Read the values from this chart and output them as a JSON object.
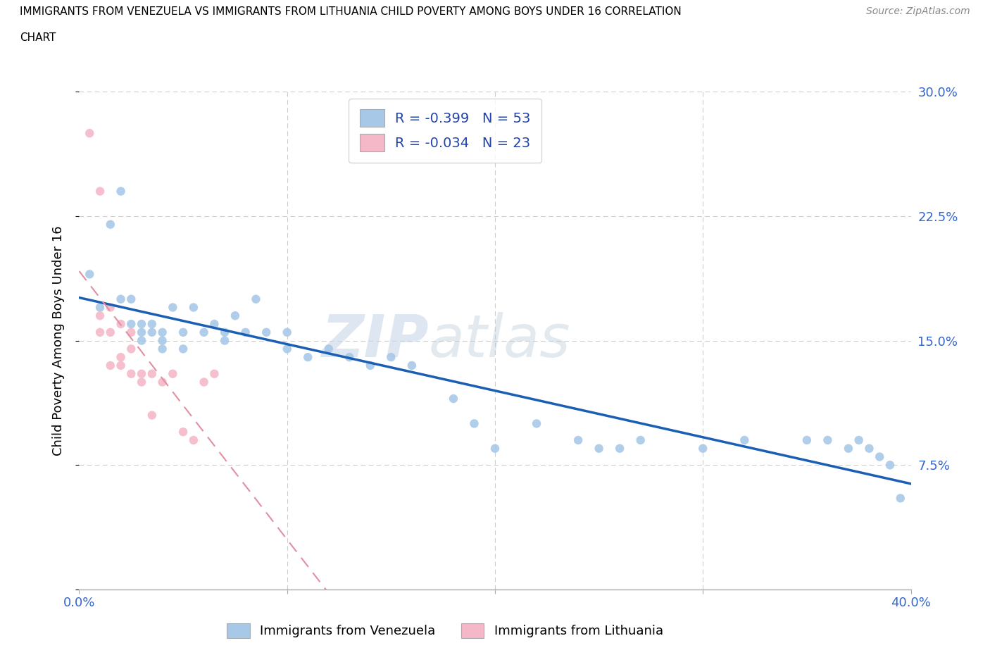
{
  "title_line1": "IMMIGRANTS FROM VENEZUELA VS IMMIGRANTS FROM LITHUANIA CHILD POVERTY AMONG BOYS UNDER 16 CORRELATION",
  "title_line2": "CHART",
  "source": "Source: ZipAtlas.com",
  "ylabel": "Child Poverty Among Boys Under 16",
  "xlim": [
    0.0,
    0.4
  ],
  "ylim": [
    0.0,
    0.3
  ],
  "xticks": [
    0.0,
    0.1,
    0.2,
    0.3,
    0.4
  ],
  "yticks": [
    0.0,
    0.075,
    0.15,
    0.225,
    0.3
  ],
  "ytick_labels": [
    "",
    "7.5%",
    "15.0%",
    "22.5%",
    "30.0%"
  ],
  "xtick_labels": [
    "0.0%",
    "",
    "",
    "",
    "40.0%"
  ],
  "watermark_ZIP": "ZIP",
  "watermark_atlas": "atlas",
  "legend_R1": "-0.399",
  "legend_N1": "53",
  "legend_R2": "-0.034",
  "legend_N2": "23",
  "color_venezuela": "#a8c8e8",
  "color_lithuania": "#f4b8c8",
  "color_line_venezuela": "#1a5fb4",
  "color_line_lithuania": "#e090a0",
  "venezuela_x": [
    0.005,
    0.01,
    0.015,
    0.02,
    0.02,
    0.025,
    0.025,
    0.03,
    0.03,
    0.03,
    0.035,
    0.035,
    0.04,
    0.04,
    0.04,
    0.045,
    0.05,
    0.05,
    0.055,
    0.06,
    0.065,
    0.07,
    0.07,
    0.075,
    0.08,
    0.085,
    0.09,
    0.1,
    0.1,
    0.11,
    0.12,
    0.13,
    0.14,
    0.15,
    0.16,
    0.18,
    0.19,
    0.2,
    0.22,
    0.24,
    0.25,
    0.26,
    0.27,
    0.3,
    0.32,
    0.35,
    0.36,
    0.37,
    0.375,
    0.38,
    0.385,
    0.39,
    0.395
  ],
  "venezuela_y": [
    0.19,
    0.17,
    0.22,
    0.24,
    0.175,
    0.175,
    0.16,
    0.16,
    0.155,
    0.15,
    0.16,
    0.155,
    0.155,
    0.15,
    0.145,
    0.17,
    0.155,
    0.145,
    0.17,
    0.155,
    0.16,
    0.15,
    0.155,
    0.165,
    0.155,
    0.175,
    0.155,
    0.155,
    0.145,
    0.14,
    0.145,
    0.14,
    0.135,
    0.14,
    0.135,
    0.115,
    0.1,
    0.085,
    0.1,
    0.09,
    0.085,
    0.085,
    0.09,
    0.085,
    0.09,
    0.09,
    0.09,
    0.085,
    0.09,
    0.085,
    0.08,
    0.075,
    0.055
  ],
  "lithuania_x": [
    0.005,
    0.01,
    0.01,
    0.01,
    0.015,
    0.015,
    0.015,
    0.02,
    0.02,
    0.02,
    0.025,
    0.025,
    0.025,
    0.03,
    0.03,
    0.035,
    0.035,
    0.04,
    0.045,
    0.05,
    0.055,
    0.06,
    0.065
  ],
  "lithuania_y": [
    0.275,
    0.24,
    0.165,
    0.155,
    0.17,
    0.155,
    0.135,
    0.16,
    0.14,
    0.135,
    0.155,
    0.145,
    0.13,
    0.13,
    0.125,
    0.13,
    0.105,
    0.125,
    0.13,
    0.095,
    0.09,
    0.125,
    0.13
  ]
}
